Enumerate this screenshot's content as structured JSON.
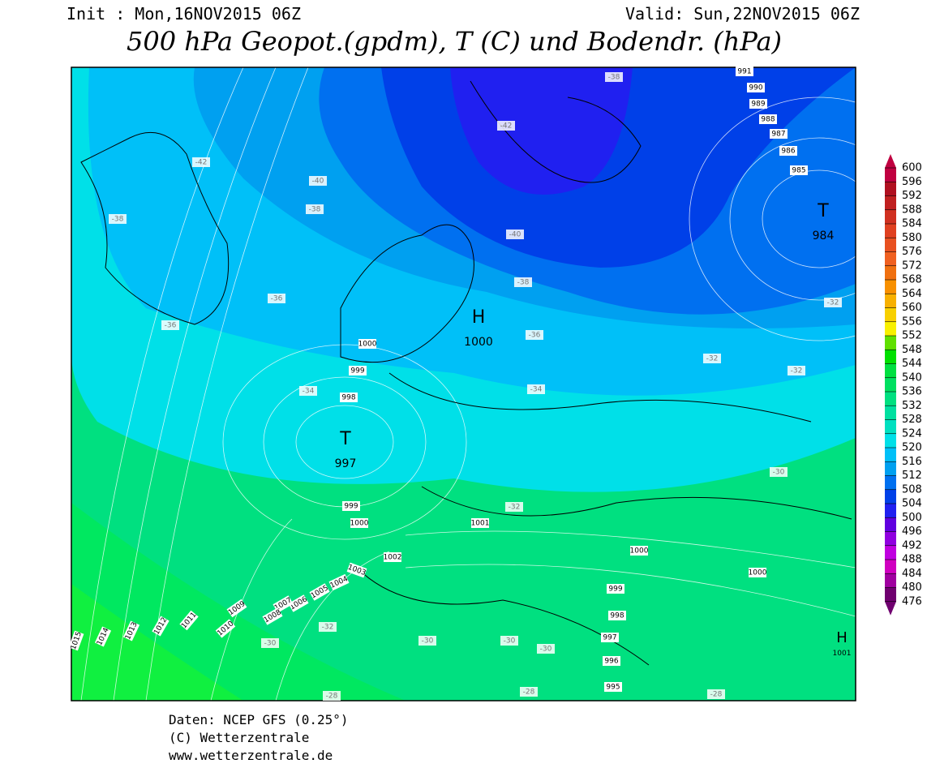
{
  "header": {
    "init": "Init : Mon,16NOV2015 06Z",
    "valid": "Valid: Sun,22NOV2015 06Z",
    "title": "500 hPa Geopot.(gpdm), T (C) und Bodendr. (hPa)"
  },
  "map": {
    "pressure_centers": [
      {
        "symbol": "H",
        "value": 1000
      },
      {
        "symbol": "T",
        "value": 997
      },
      {
        "symbol": "T",
        "value": 984
      },
      {
        "symbol": "H",
        "value": 1001
      }
    ],
    "isobar_labels": [
      991,
      990,
      989,
      988,
      987,
      986,
      985,
      1000,
      999,
      998,
      999,
      1000,
      1001,
      1002,
      1003,
      1004,
      1005,
      1006,
      1007,
      1008,
      1009,
      1010,
      1011,
      1012,
      1013,
      1014,
      1015,
      1000,
      1000,
      999,
      998,
      997,
      996,
      995
    ],
    "temperature_labels": [
      -38,
      -42,
      -42,
      -40,
      -38,
      -38,
      -40,
      -38,
      -36,
      -36,
      -36,
      -34,
      -34,
      -32,
      -32,
      -32,
      -30,
      -32,
      -32,
      -30,
      -30,
      -30,
      -30,
      -28,
      -28,
      -28
    ]
  },
  "colorbar": {
    "levels": [
      600,
      596,
      592,
      588,
      584,
      580,
      576,
      572,
      568,
      564,
      560,
      556,
      552,
      548,
      544,
      540,
      536,
      532,
      528,
      524,
      520,
      516,
      512,
      508,
      504,
      500,
      496,
      492,
      488,
      484,
      480,
      476
    ],
    "colors": [
      "#c00040",
      "#b01020",
      "#c02020",
      "#d03020",
      "#e04020",
      "#e85020",
      "#f06020",
      "#f07010",
      "#f89000",
      "#f8b000",
      "#f8d000",
      "#f8f000",
      "#60e000",
      "#00e000",
      "#00e040",
      "#00e060",
      "#00e080",
      "#00e0a0",
      "#00e0c0",
      "#00e0e8",
      "#00c0f8",
      "#00a0f0",
      "#0070f0",
      "#0040e8",
      "#2020f0",
      "#6000e0",
      "#9000e0",
      "#c000e0",
      "#d000c0",
      "#a000a0",
      "#700070"
    ]
  },
  "footer": [
    "Daten: NCEP GFS (0.25°)",
    "(C) Wetterzentrale",
    "www.wetterzentrale.de"
  ]
}
